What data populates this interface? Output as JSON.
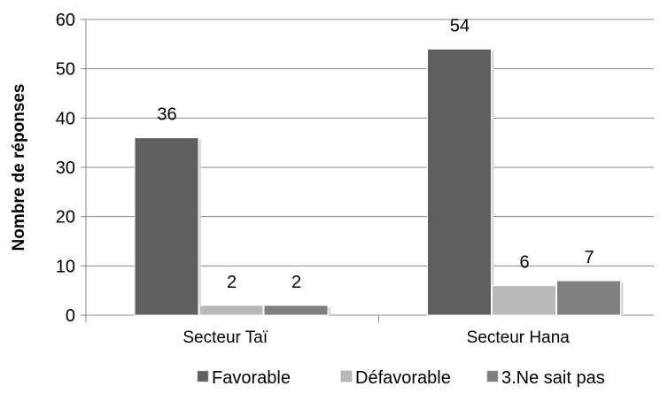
{
  "chart_data": {
    "type": "bar",
    "categories": [
      "Secteur Taï",
      "Secteur Hana"
    ],
    "series": [
      {
        "name": "Favorable",
        "values": [
          36,
          54
        ],
        "color": "#5f5f5f"
      },
      {
        "name": "Défavorable",
        "values": [
          2,
          6
        ],
        "color": "#b9b9b9"
      },
      {
        "name": "3.Ne sait pas",
        "values": [
          2,
          7
        ],
        "color": "#808080"
      }
    ],
    "data_labels": true,
    "xlabel": "",
    "ylabel": "Nombre de réponses",
    "ylim": [
      0,
      60
    ],
    "yticks": [
      0,
      10,
      20,
      30,
      40,
      50,
      60
    ],
    "ytick_labels": [
      "0",
      "10",
      "20",
      "30",
      "40",
      "50",
      "60"
    ],
    "grid": true,
    "legend_position": "bottom"
  }
}
